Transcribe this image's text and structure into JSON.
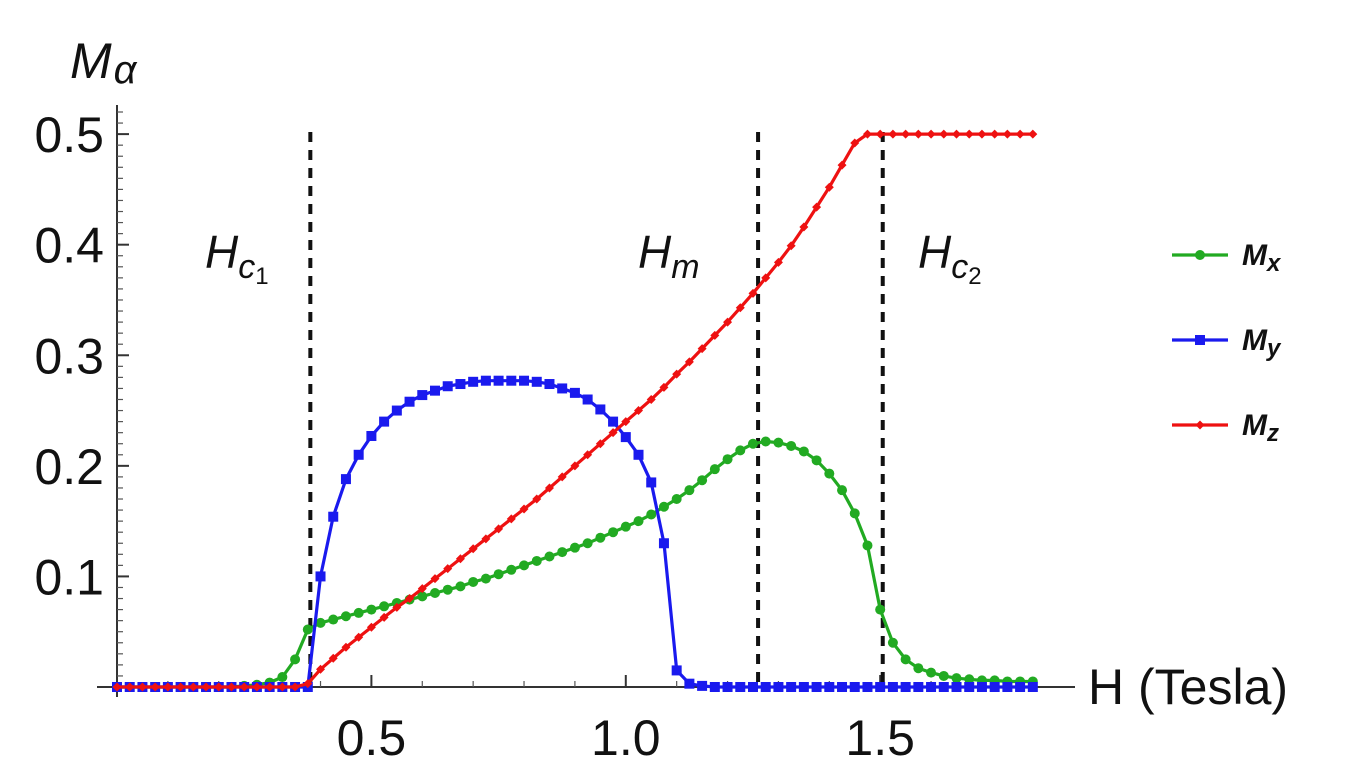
{
  "chart_data": {
    "type": "line",
    "title": "",
    "xlabel": "H (Tesla)",
    "ylabel_main": "M",
    "ylabel_sub": "α",
    "xlim": [
      0.0,
      1.82
    ],
    "ylim": [
      0.0,
      0.52
    ],
    "x_ticks": [
      0.5,
      1.0,
      1.5
    ],
    "x_tick_labels": [
      "0.5",
      "1.0",
      "1.5"
    ],
    "y_ticks": [
      0.1,
      0.2,
      0.3,
      0.4,
      0.5
    ],
    "y_tick_labels": [
      "0.1",
      "0.2",
      "0.3",
      "0.4",
      "0.5"
    ],
    "grid": false,
    "legend_position": "right",
    "critical_fields": [
      {
        "name": "H_c1",
        "main": "H",
        "sub": "c",
        "subsub": "1",
        "x": 0.38
      },
      {
        "name": "H_m",
        "main": "H",
        "sub": "m",
        "subsub": "",
        "x": 1.26
      },
      {
        "name": "H_c2",
        "main": "H",
        "sub": "c",
        "subsub": "2",
        "x": 1.505
      }
    ],
    "x": [
      0.0,
      0.025,
      0.05,
      0.075,
      0.1,
      0.125,
      0.15,
      0.175,
      0.2,
      0.225,
      0.25,
      0.275,
      0.3,
      0.325,
      0.35,
      0.375,
      0.4,
      0.425,
      0.45,
      0.475,
      0.5,
      0.525,
      0.55,
      0.575,
      0.6,
      0.625,
      0.65,
      0.675,
      0.7,
      0.725,
      0.75,
      0.775,
      0.8,
      0.825,
      0.85,
      0.875,
      0.9,
      0.925,
      0.95,
      0.975,
      1.0,
      1.025,
      1.05,
      1.075,
      1.1,
      1.125,
      1.15,
      1.175,
      1.2,
      1.225,
      1.25,
      1.275,
      1.3,
      1.325,
      1.35,
      1.375,
      1.4,
      1.425,
      1.45,
      1.475,
      1.5,
      1.525,
      1.55,
      1.575,
      1.6,
      1.625,
      1.65,
      1.675,
      1.7,
      1.725,
      1.75,
      1.775,
      1.8
    ],
    "series": [
      {
        "name": "Mx",
        "label_main": "M",
        "label_sub": "x",
        "color": "#22aa22",
        "marker": "circle",
        "values": [
          0,
          0,
          0,
          0,
          0,
          0,
          0,
          0,
          0,
          0,
          0.001,
          0.002,
          0.004,
          0.009,
          0.025,
          0.052,
          0.058,
          0.061,
          0.064,
          0.067,
          0.07,
          0.073,
          0.076,
          0.079,
          0.082,
          0.085,
          0.088,
          0.091,
          0.095,
          0.098,
          0.102,
          0.106,
          0.11,
          0.114,
          0.118,
          0.122,
          0.126,
          0.13,
          0.135,
          0.14,
          0.145,
          0.15,
          0.156,
          0.163,
          0.17,
          0.178,
          0.187,
          0.197,
          0.206,
          0.214,
          0.22,
          0.222,
          0.221,
          0.218,
          0.213,
          0.205,
          0.193,
          0.178,
          0.157,
          0.128,
          0.07,
          0.04,
          0.025,
          0.017,
          0.013,
          0.01,
          0.008,
          0.007,
          0.006,
          0.006,
          0.005,
          0.005,
          0.005
        ]
      },
      {
        "name": "My",
        "label_main": "M",
        "label_sub": "y",
        "color": "#1a1aee",
        "marker": "square",
        "values": [
          0,
          0,
          0,
          0,
          0,
          0,
          0,
          0,
          0,
          0,
          0,
          0,
          0,
          0,
          0,
          0,
          0.1,
          0.154,
          0.188,
          0.21,
          0.227,
          0.24,
          0.25,
          0.258,
          0.264,
          0.268,
          0.272,
          0.274,
          0.276,
          0.277,
          0.277,
          0.277,
          0.277,
          0.276,
          0.274,
          0.27,
          0.266,
          0.26,
          0.251,
          0.24,
          0.226,
          0.21,
          0.185,
          0.13,
          0.015,
          0.003,
          0.001,
          0,
          0,
          0,
          0,
          0,
          0,
          0,
          0,
          0,
          0,
          0,
          0,
          0,
          0,
          0,
          0,
          0,
          0,
          0,
          0,
          0,
          0,
          0,
          0,
          0,
          0
        ]
      },
      {
        "name": "Mz",
        "label_main": "M",
        "label_sub": "z",
        "color": "#ee1111",
        "marker": "diamond",
        "values": [
          0,
          0,
          0,
          0,
          0,
          0,
          0,
          0,
          0,
          0,
          0,
          0,
          0,
          0,
          0,
          0.003,
          0.016,
          0.026,
          0.036,
          0.045,
          0.054,
          0.063,
          0.072,
          0.08,
          0.089,
          0.098,
          0.107,
          0.116,
          0.125,
          0.134,
          0.143,
          0.152,
          0.161,
          0.17,
          0.18,
          0.19,
          0.2,
          0.21,
          0.22,
          0.23,
          0.24,
          0.25,
          0.26,
          0.271,
          0.283,
          0.294,
          0.306,
          0.318,
          0.33,
          0.343,
          0.356,
          0.37,
          0.384,
          0.399,
          0.416,
          0.434,
          0.452,
          0.472,
          0.492,
          0.5,
          0.5,
          0.5,
          0.5,
          0.5,
          0.5,
          0.5,
          0.5,
          0.5,
          0.5,
          0.5,
          0.5,
          0.5,
          0.5
        ]
      }
    ]
  }
}
